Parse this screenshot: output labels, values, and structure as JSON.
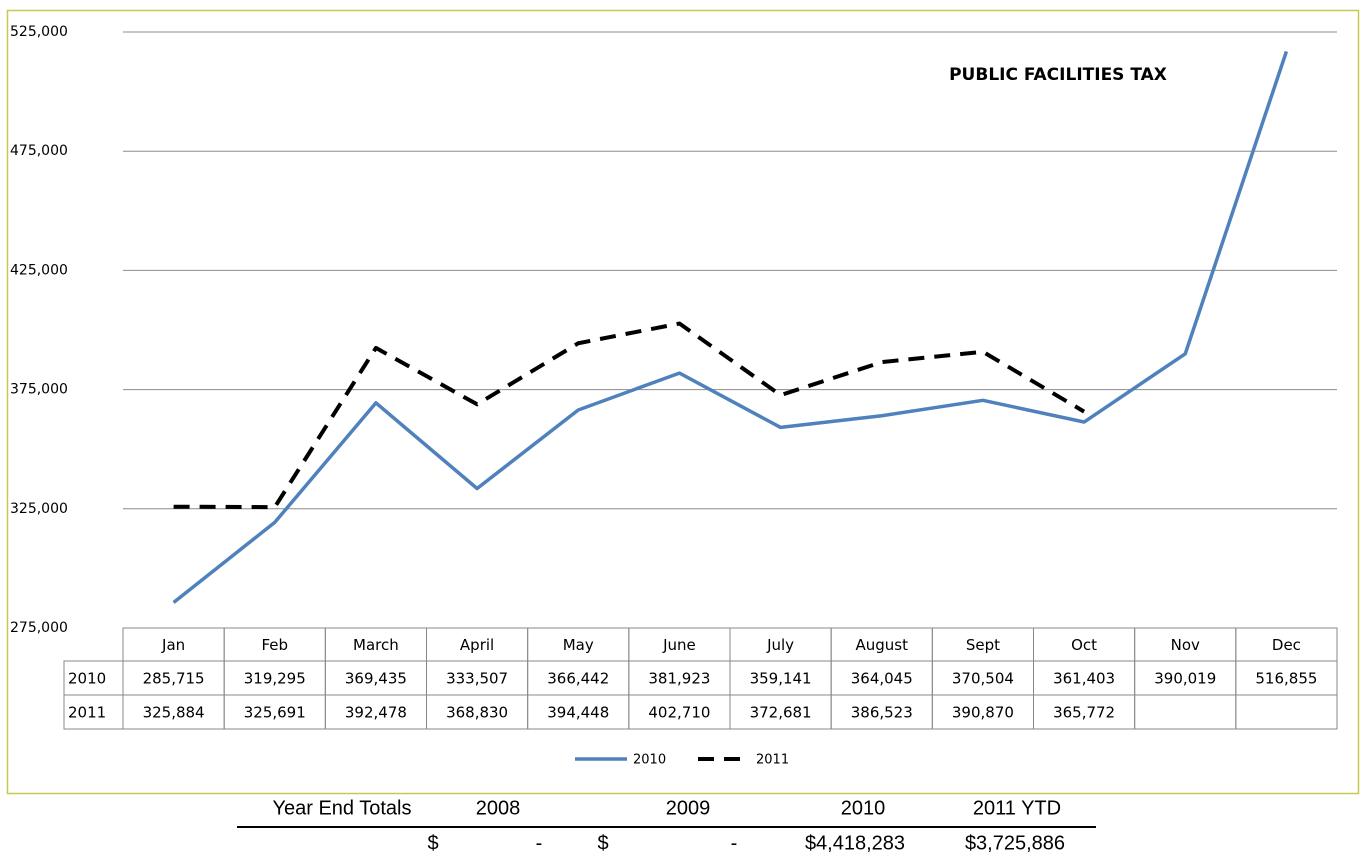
{
  "chart_data": {
    "type": "line",
    "title": "PUBLIC FACILITIES TAX",
    "categories": [
      "Jan",
      "Feb",
      "March",
      "April",
      "May",
      "June",
      "July",
      "August",
      "Sept",
      "Oct",
      "Nov",
      "Dec"
    ],
    "series": [
      {
        "name": "2010",
        "color": "#4f81bd",
        "dashed": false,
        "values": [
          285715,
          319295,
          369435,
          333507,
          366442,
          381923,
          359141,
          364045,
          370504,
          361403,
          390019,
          516855
        ],
        "value_labels": [
          "285,715",
          "319,295",
          "369,435",
          "333,507",
          "366,442",
          "381,923",
          "359,141",
          "364,045",
          "370,504",
          "361,403",
          "390,019",
          "516,855"
        ]
      },
      {
        "name": "2011",
        "color": "#000000",
        "dashed": true,
        "values": [
          325884,
          325691,
          392478,
          368830,
          394448,
          402710,
          372681,
          386523,
          390870,
          365772,
          null,
          null
        ],
        "value_labels": [
          "325,884",
          "325,691",
          "392,478",
          "368,830",
          "394,448",
          "402,710",
          "372,681",
          "386,523",
          "390,870",
          "365,772",
          null,
          null
        ]
      }
    ],
    "ylim": [
      275000,
      525000
    ],
    "yticks": [
      {
        "value": 275000,
        "label": "275,000"
      },
      {
        "value": 325000,
        "label": "325,000"
      },
      {
        "value": 375000,
        "label": "375,000"
      },
      {
        "value": 425000,
        "label": "425,000"
      },
      {
        "value": 475000,
        "label": "475,000"
      },
      {
        "value": 525000,
        "label": "525,000"
      }
    ],
    "grid": true,
    "legend": "bottom"
  },
  "totals_table": {
    "header": [
      "Year End Totals",
      "2008",
      "2009",
      "2010",
      "2011 YTD"
    ],
    "row": [
      "$",
      "-",
      "$",
      "-",
      "$4,418,283",
      "$3,725,886"
    ]
  }
}
